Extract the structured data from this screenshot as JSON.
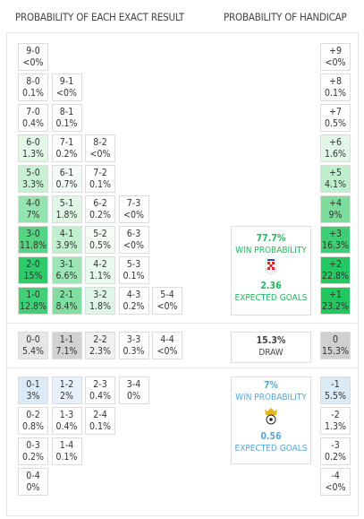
{
  "headers": {
    "exact": "PROBABILITY OF EACH EXACT RESULT",
    "handicap": "PROBABILITY OF HANDICAP"
  },
  "home_rows": [
    [
      {
        "score": "9-0",
        "prob": "<0%",
        "color": "#ffffff"
      }
    ],
    [
      {
        "score": "8-0",
        "prob": "0.1%",
        "color": "#ffffff"
      },
      {
        "score": "9-1",
        "prob": "<0%",
        "color": "#ffffff"
      }
    ],
    [
      {
        "score": "7-0",
        "prob": "0.4%",
        "color": "#ffffff"
      },
      {
        "score": "8-1",
        "prob": "0.1%",
        "color": "#ffffff"
      }
    ],
    [
      {
        "score": "6-0",
        "prob": "1.3%",
        "color": "#e4f8ea"
      },
      {
        "score": "7-1",
        "prob": "0.2%",
        "color": "#ffffff"
      },
      {
        "score": "8-2",
        "prob": "<0%",
        "color": "#ffffff"
      }
    ],
    [
      {
        "score": "5-0",
        "prob": "3.3%",
        "color": "#c8f1d4"
      },
      {
        "score": "6-1",
        "prob": "0.7%",
        "color": "#f2fbf5"
      },
      {
        "score": "7-2",
        "prob": "0.1%",
        "color": "#ffffff"
      }
    ],
    [
      {
        "score": "4-0",
        "prob": "7%",
        "color": "#93e4ae"
      },
      {
        "score": "5-1",
        "prob": "1.8%",
        "color": "#e0f7e7"
      },
      {
        "score": "6-2",
        "prob": "0.2%",
        "color": "#ffffff"
      },
      {
        "score": "7-3",
        "prob": "<0%",
        "color": "#ffffff"
      }
    ],
    [
      {
        "score": "3-0",
        "prob": "11.8%",
        "color": "#55d583"
      },
      {
        "score": "4-1",
        "prob": "3.9%",
        "color": "#c2f0cf"
      },
      {
        "score": "5-2",
        "prob": "0.5%",
        "color": "#f4fcf6"
      },
      {
        "score": "6-3",
        "prob": "<0%",
        "color": "#ffffff"
      }
    ],
    [
      {
        "score": "2-0",
        "prob": "15%",
        "color": "#2ecb6a"
      },
      {
        "score": "3-1",
        "prob": "6.6%",
        "color": "#9ce6b5"
      },
      {
        "score": "4-2",
        "prob": "1.1%",
        "color": "#e8f9ed"
      },
      {
        "score": "5-3",
        "prob": "0.1%",
        "color": "#ffffff"
      }
    ],
    [
      {
        "score": "1-0",
        "prob": "12.8%",
        "color": "#40d077"
      },
      {
        "score": "2-1",
        "prob": "8.4%",
        "color": "#80dfa0"
      },
      {
        "score": "3-2",
        "prob": "1.8%",
        "color": "#e0f7e7"
      },
      {
        "score": "4-3",
        "prob": "0.2%",
        "color": "#ffffff"
      },
      {
        "score": "5-4",
        "prob": "<0%",
        "color": "#ffffff"
      }
    ]
  ],
  "draw_row": [
    {
      "score": "0-0",
      "prob": "5.4%",
      "color": "#e6e6e6"
    },
    {
      "score": "1-1",
      "prob": "7.1%",
      "color": "#d2d2d2"
    },
    {
      "score": "2-2",
      "prob": "2.3%",
      "color": "#f0f0f0"
    },
    {
      "score": "3-3",
      "prob": "0.3%",
      "color": "#ffffff"
    },
    {
      "score": "4-4",
      "prob": "<0%",
      "color": "#ffffff"
    }
  ],
  "away_rows": [
    [
      {
        "score": "0-1",
        "prob": "3%",
        "color": "#dbeaf7"
      },
      {
        "score": "1-2",
        "prob": "2%",
        "color": "#e8f1fa"
      },
      {
        "score": "2-3",
        "prob": "0.4%",
        "color": "#ffffff"
      },
      {
        "score": "3-4",
        "prob": "0%",
        "color": "#ffffff"
      }
    ],
    [
      {
        "score": "0-2",
        "prob": "0.8%",
        "color": "#ffffff"
      },
      {
        "score": "1-3",
        "prob": "0.4%",
        "color": "#ffffff"
      },
      {
        "score": "2-4",
        "prob": "0.1%",
        "color": "#ffffff"
      }
    ],
    [
      {
        "score": "0-3",
        "prob": "0.2%",
        "color": "#ffffff"
      },
      {
        "score": "1-4",
        "prob": "0.1%",
        "color": "#ffffff"
      }
    ],
    [
      {
        "score": "0-4",
        "prob": "0%",
        "color": "#ffffff"
      }
    ]
  ],
  "handicap": [
    {
      "label": "+9",
      "prob": "<0%",
      "color": "#ffffff"
    },
    {
      "label": "+8",
      "prob": "0.1%",
      "color": "#ffffff"
    },
    {
      "label": "+7",
      "prob": "0.5%",
      "color": "#ffffff"
    },
    {
      "label": "+6",
      "prob": "1.6%",
      "color": "#e2f7e8"
    },
    {
      "label": "+5",
      "prob": "4.1%",
      "color": "#c0efce"
    },
    {
      "label": "+4",
      "prob": "9%",
      "color": "#7cdd9d"
    },
    {
      "label": "+3",
      "prob": "16.3%",
      "color": "#3ccf74"
    },
    {
      "label": "+2",
      "prob": "22.8%",
      "color": "#24c862"
    },
    {
      "label": "+1",
      "prob": "23.2%",
      "color": "#22c760"
    },
    {
      "label": "0",
      "prob": "15.3%",
      "color": "#d0d0d0"
    },
    {
      "label": "-1",
      "prob": "5.5%",
      "color": "#dbeaf7"
    },
    {
      "label": "-2",
      "prob": "1.3%",
      "color": "#ffffff"
    },
    {
      "label": "-3",
      "prob": "0.2%",
      "color": "#ffffff"
    },
    {
      "label": "-4",
      "prob": "<0%",
      "color": "#ffffff"
    }
  ],
  "home_panel": {
    "probability": "77.7%",
    "probability_label": "WIN PROBABILITY",
    "expected_goals": "2.36",
    "expected_goals_label": "EXPECTED GOALS"
  },
  "draw_panel": {
    "probability": "15.3%",
    "label": "DRAW"
  },
  "away_panel": {
    "probability": "7%",
    "probability_label": "WIN PROBABILITY",
    "expected_goals": "0.56",
    "expected_goals_label": "EXPECTED GOALS"
  }
}
